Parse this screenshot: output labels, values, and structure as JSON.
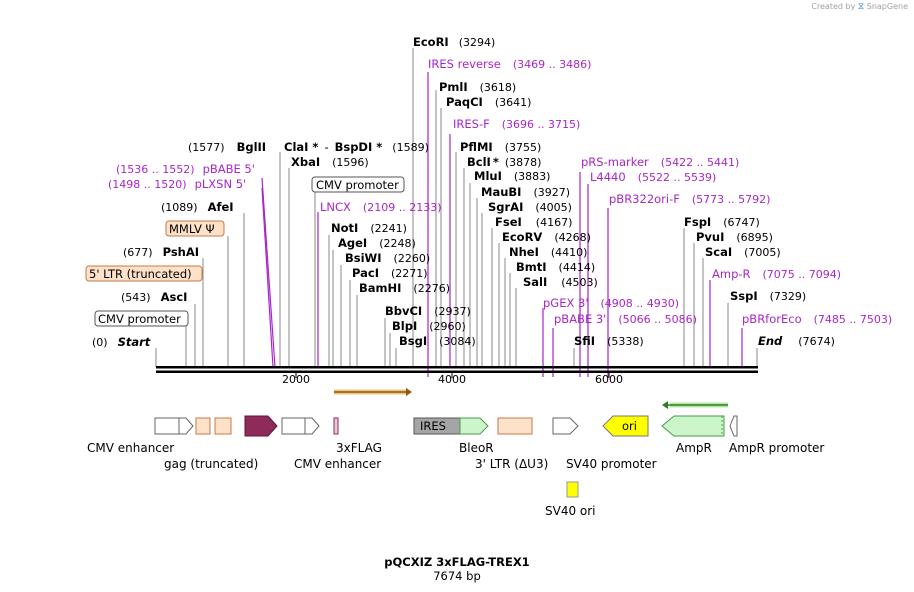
{
  "credit": {
    "prefix": "Created by",
    "logo_icon": "snapgene-logo-icon",
    "brand": "SnapGene"
  },
  "plasmid": {
    "name": "pQCXIZ 3xFLAG-TREX1",
    "length": "7674 bp"
  },
  "axis": {
    "ticks": [
      "2000",
      "4000",
      "6000"
    ]
  },
  "sites": [
    {
      "name": "EcoRI",
      "pos": "(3294)"
    },
    {
      "name": "PmlI",
      "pos": "(3618)"
    },
    {
      "name": "PaqCI",
      "pos": "(3641)"
    },
    {
      "name": "PflMI",
      "pos": "(3755)"
    },
    {
      "name": "BclI",
      "star": "*",
      "pos": "(3878)"
    },
    {
      "name": "MluI",
      "pos": "(3883)"
    },
    {
      "name": "MauBI",
      "pos": "(3927)"
    },
    {
      "name": "SgrAI",
      "pos": "(4005)"
    },
    {
      "name": "FseI",
      "pos": "(4167)"
    },
    {
      "name": "EcoRV",
      "pos": "(4268)"
    },
    {
      "name": "NheI",
      "pos": "(4410)"
    },
    {
      "name": "BmtI",
      "pos": "(4414)"
    },
    {
      "name": "SalI",
      "pos": "(4503)"
    },
    {
      "name": "BglII",
      "pos": "(1577)"
    },
    {
      "name": "ClaI",
      "star": "*",
      "sep": "-",
      "name2": "BspDI",
      "star2": "*",
      "pos": "(1589)"
    },
    {
      "name": "XbaI",
      "pos": "(1596)"
    },
    {
      "name": "AfeI",
      "pos": "(1089)"
    },
    {
      "name": "PshAI",
      "pos": "(677)"
    },
    {
      "name": "AscI",
      "pos": "(543)"
    },
    {
      "name": "Start",
      "pos": "(0)"
    },
    {
      "name": "NotI",
      "pos": "(2241)"
    },
    {
      "name": "AgeI",
      "pos": "(2248)"
    },
    {
      "name": "BsiWI",
      "pos": "(2260)"
    },
    {
      "name": "PacI",
      "pos": "(2271)"
    },
    {
      "name": "BamHI",
      "pos": "(2276)"
    },
    {
      "name": "BbvCI",
      "pos": "(2937)"
    },
    {
      "name": "BlpI",
      "pos": "(2960)"
    },
    {
      "name": "BsgI",
      "pos": "(3084)"
    },
    {
      "name": "SfiI",
      "pos": "(5338)"
    },
    {
      "name": "FspI",
      "pos": "(6747)"
    },
    {
      "name": "PvuI",
      "pos": "(6895)"
    },
    {
      "name": "ScaI",
      "pos": "(7005)"
    },
    {
      "name": "SspI",
      "pos": "(7329)"
    },
    {
      "name": "End",
      "pos": "(7674)"
    }
  ],
  "primers": [
    {
      "name": "IRES reverse",
      "range": "(3469 .. 3486)"
    },
    {
      "name": "IRES-F",
      "range": "(3696 .. 3715)"
    },
    {
      "name": "pBABE 5'",
      "range": "(1536 .. 1552)"
    },
    {
      "name": "pLXSN 5'",
      "range": "(1498 .. 1520)"
    },
    {
      "name": "LNCX",
      "range": "(2109 .. 2133)"
    },
    {
      "name": "pRS-marker",
      "range": "(5422 .. 5441)"
    },
    {
      "name": "L4440",
      "range": "(5522 .. 5539)"
    },
    {
      "name": "pBR322ori-F",
      "range": "(5773 .. 5792)"
    },
    {
      "name": "Amp-R",
      "range": "(7075 .. 7094)"
    },
    {
      "name": "pGEX 3'",
      "range": "(4908 .. 4930)"
    },
    {
      "name": "pBABE 3'",
      "range": "(5066 .. 5086)"
    },
    {
      "name": "pBRforEco",
      "range": "(7485 .. 7503)"
    }
  ],
  "boxed_labels": {
    "cmv_promoter_top": "CMV promoter",
    "cmv_promoter_left": "CMV promoter",
    "mmlv_psi": "MMLV Ψ",
    "ltr_truncated": "5' LTR (truncated)"
  },
  "features": {
    "cmv_enhancer_1": "CMV enhancer",
    "gag_truncated": "gag (truncated)",
    "cmv_enhancer_2": "CMV enhancer",
    "flag": "3xFLAG",
    "bleor": "BleoR",
    "ltr3": "3' LTR (ΔU3)",
    "sv40_promoter": "SV40 promoter",
    "sv40_ori": "SV40 ori",
    "ampr": "AmpR",
    "ampr_promoter": "AmpR promoter",
    "ires_inner": "IRES",
    "ori_inner": "ori"
  },
  "colors": {
    "primer": "#a826c8",
    "ltr_fill": "#fde1c8",
    "insert": "#8e2b5a",
    "bleor": "#ccf5cc",
    "ori": "#ffff00",
    "orf_arrow": "#e8a317",
    "amp_arrow": "#2e7d1e"
  }
}
